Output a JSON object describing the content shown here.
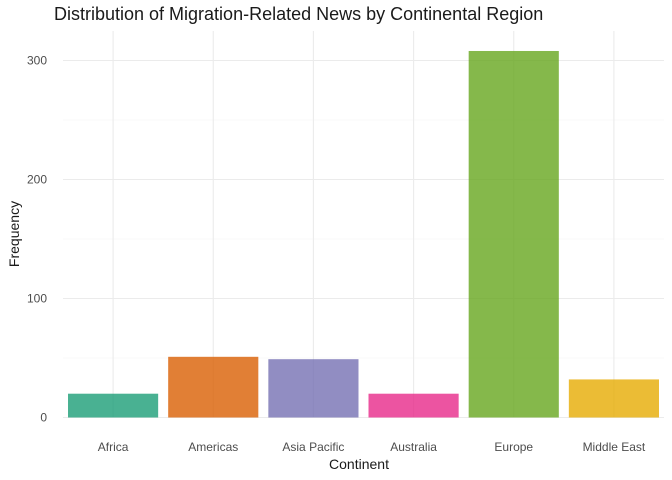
{
  "chart_data": {
    "type": "bar",
    "title": "Distribution of Migration-Related News by Continental Region",
    "xlabel": "Continent",
    "ylabel": "Frequency",
    "categories": [
      "Africa",
      "Americas",
      "Asia Pacific",
      "Australia",
      "Europe",
      "Middle East"
    ],
    "values": [
      20,
      51,
      49,
      20,
      308,
      32
    ],
    "colors": [
      "#1b9e77",
      "#d95f02",
      "#7570b3",
      "#e7298a",
      "#66a61e",
      "#e6ab02"
    ],
    "ylim": [
      0,
      320
    ],
    "yticks": [
      0,
      100,
      200,
      300
    ],
    "grid": true,
    "legend": "none"
  }
}
